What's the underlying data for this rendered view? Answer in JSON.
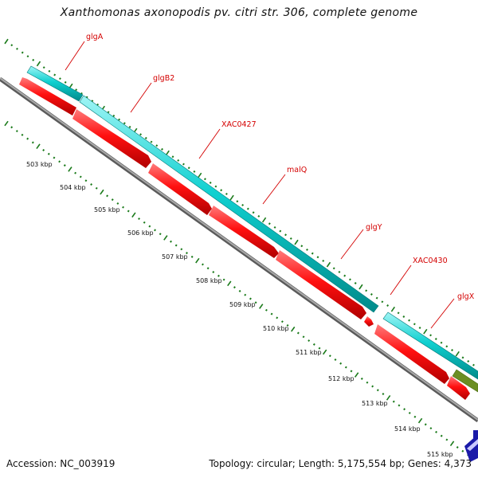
{
  "title": "Xanthomonas axonopodis pv. citri str. 306, complete genome",
  "footer": {
    "accession": "Accession: NC_003919",
    "summary": "Topology: circular; Length: 5,175,554 bp; Genes: 4,373"
  },
  "genes": [
    {
      "label": "glgA",
      "color": "#00cccc"
    },
    {
      "label": "glgB2",
      "color": "#ff0000"
    },
    {
      "label": "XAC0427",
      "color": "#ff0000"
    },
    {
      "label": "malQ",
      "color": "#ff0000"
    },
    {
      "label": "glgY",
      "color": "#ff0000"
    },
    {
      "label": "XAC0430",
      "color": "#ff0000"
    },
    {
      "label": "glgX",
      "color": "#ff0000"
    }
  ],
  "ticks": [
    "503 kbp",
    "504 kbp",
    "505 kbp",
    "506 kbp",
    "507 kbp",
    "508 kbp",
    "509 kbp",
    "510 kbp",
    "511 kbp",
    "512 kbp",
    "513 kbp",
    "514 kbp",
    "515 kbp"
  ],
  "colors": {
    "forward_strand": "#00cccc",
    "reverse_strand": "#ff0000",
    "backbone": "#808080",
    "tick_marks": "#1a7a1a",
    "label_text": "#d40000",
    "olive_feature": "#6b8e23",
    "blue_feature": "#1a1aa8"
  }
}
